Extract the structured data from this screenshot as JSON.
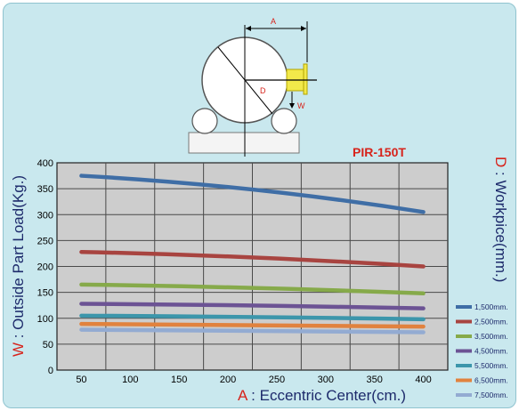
{
  "diagram": {
    "dimension_a": "A",
    "dimension_d": "D",
    "dimension_w": "W"
  },
  "chart_data": {
    "type": "line",
    "title": "PIR-150T",
    "xlabel_letter": "A",
    "xlabel_text": " : Eccentric Center(cm.)",
    "ylabel_letter": "W",
    "ylabel_text": " : Outside Part Load(Kg.)",
    "right_label_letter": "D",
    "right_label_text": " : Workpice(mm.)",
    "x": [
      50,
      400
    ],
    "x_ticks": [
      50,
      100,
      150,
      200,
      250,
      300,
      350,
      400
    ],
    "y_ticks": [
      0,
      50,
      100,
      150,
      200,
      250,
      300,
      350,
      400
    ],
    "xlim": [
      25,
      425
    ],
    "ylim": [
      0,
      400
    ],
    "grid": true,
    "legend_position": "right",
    "series": [
      {
        "name": "1,500mm.",
        "color": "#3f6ea6",
        "values": [
          375,
          305
        ]
      },
      {
        "name": "2,500mm.",
        "color": "#a84440",
        "values": [
          228,
          200
        ]
      },
      {
        "name": "3,500mm.",
        "color": "#86aa4a",
        "values": [
          165,
          148
        ]
      },
      {
        "name": "4,500mm.",
        "color": "#6c5394",
        "values": [
          128,
          119
        ]
      },
      {
        "name": "5,500mm.",
        "color": "#3c96ab",
        "values": [
          105,
          98
        ]
      },
      {
        "name": "6,500mm.",
        "color": "#e1823e",
        "values": [
          89,
          84
        ]
      },
      {
        "name": "7,500mm.",
        "color": "#93abd2",
        "values": [
          78,
          73
        ]
      }
    ],
    "series_shape": "gently-decreasing curve"
  }
}
